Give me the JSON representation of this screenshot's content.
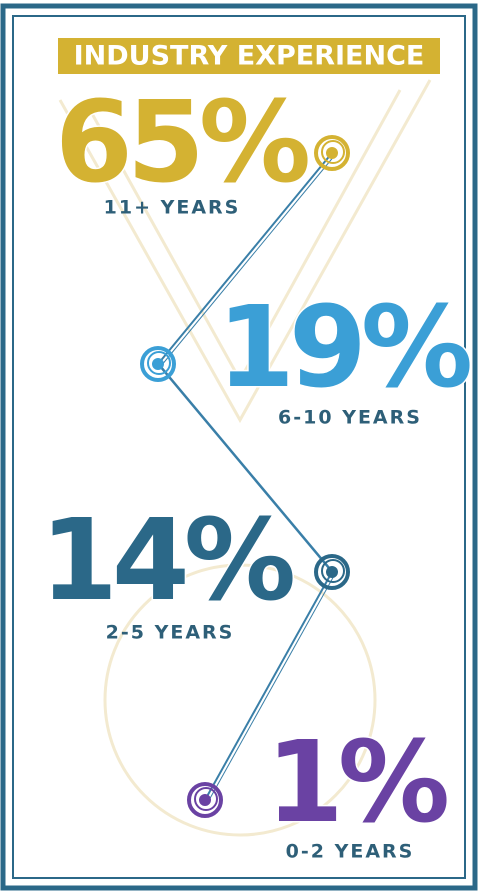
{
  "title": "INDUSTRY EXPERIENCE",
  "items": [
    {
      "percent": "65%",
      "label": "11+ YEARS",
      "color": "#d4b232"
    },
    {
      "percent": "19%",
      "label": "6-10 YEARS",
      "color": "#3b9fd6"
    },
    {
      "percent": "14%",
      "label": "2-5 YEARS",
      "color": "#2b6888"
    },
    {
      "percent": "1%",
      "label": "0-2 YEARS",
      "color": "#6a42a3"
    }
  ]
}
